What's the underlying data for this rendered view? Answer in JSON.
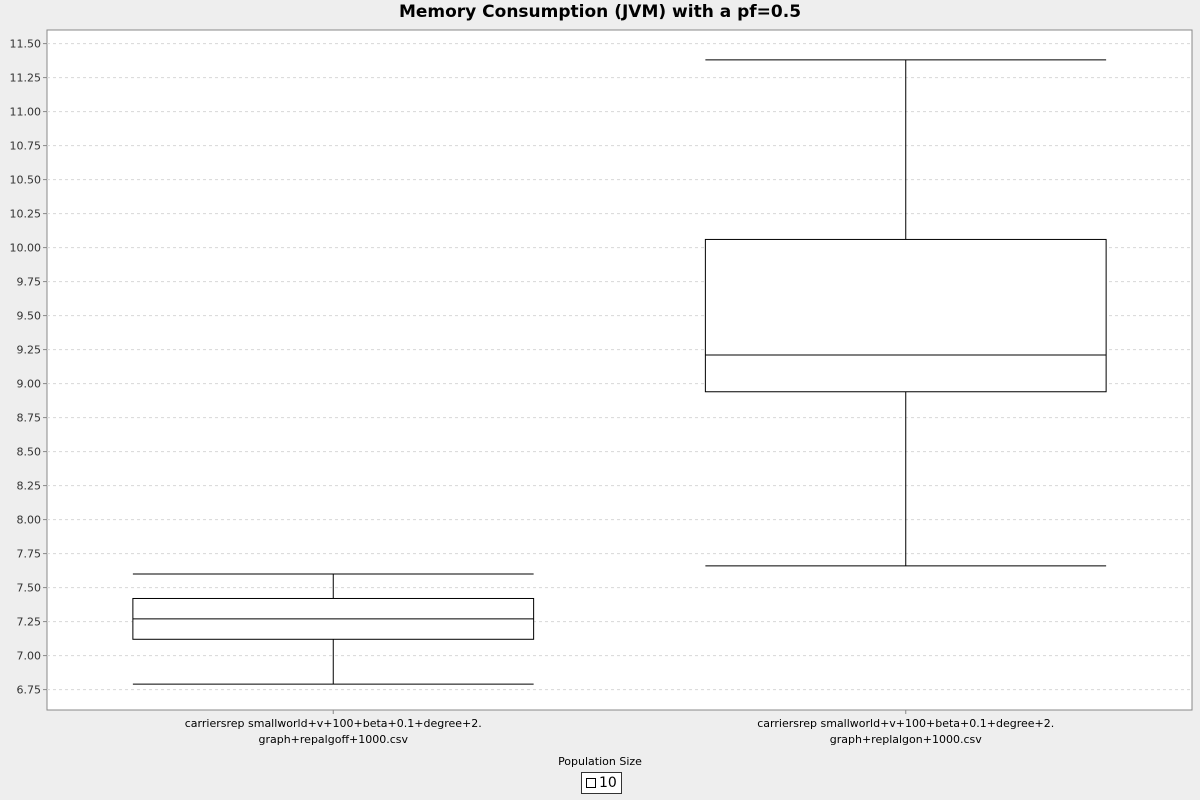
{
  "chart_data": {
    "type": "boxplot",
    "title": "Memory Consumption (JVM) with a pf=0.5",
    "ylim": [
      6.6,
      11.6
    ],
    "y_ticks": [
      "6.75",
      "7.00",
      "7.25",
      "7.50",
      "7.75",
      "8.00",
      "8.25",
      "8.50",
      "8.75",
      "9.00",
      "9.25",
      "9.50",
      "9.75",
      "10.00",
      "10.25",
      "10.50",
      "10.75",
      "11.00",
      "11.25",
      "11.50"
    ],
    "grid": true,
    "categories": [
      {
        "label_line1": "carriersrep smallworld+v+100+beta+0.1+degree+2.",
        "label_line2": "graph+repalgoff+1000.csv",
        "min": 6.79,
        "q1": 7.12,
        "median": 7.27,
        "q3": 7.42,
        "max": 7.6
      },
      {
        "label_line1": "carriersrep smallworld+v+100+beta+0.1+degree+2.",
        "label_line2": "graph+replalgon+1000.csv",
        "min": 7.66,
        "q1": 8.94,
        "median": 9.21,
        "q3": 10.06,
        "max": 11.38
      }
    ],
    "legend": {
      "title": "Population Size",
      "entries": [
        "10"
      ],
      "placement": "bottom-center"
    }
  }
}
